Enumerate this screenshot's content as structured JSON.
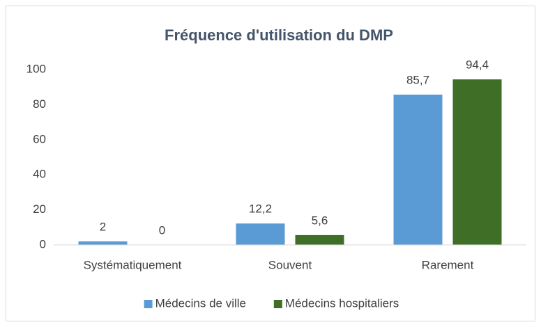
{
  "chart_data": {
    "type": "bar",
    "title": "Fréquence d'utilisation du DMP",
    "categories": [
      "Systématiquement",
      "Souvent",
      "Rarement"
    ],
    "series": [
      {
        "name": "Médecins de ville",
        "color": "#5b9bd5",
        "values": [
          2,
          12.2,
          85.7
        ],
        "value_labels": [
          "2",
          "12,2",
          "85,7"
        ]
      },
      {
        "name": "Médecins hospitaliers",
        "color": "#3f6e27",
        "values": [
          0,
          5.6,
          94.4
        ],
        "value_labels": [
          "0",
          "5,6",
          "94,4"
        ]
      }
    ],
    "ylim": [
      0,
      100
    ],
    "yticks": [
      0,
      20,
      40,
      60,
      80,
      100
    ],
    "grid": false,
    "legend": "bottom"
  }
}
